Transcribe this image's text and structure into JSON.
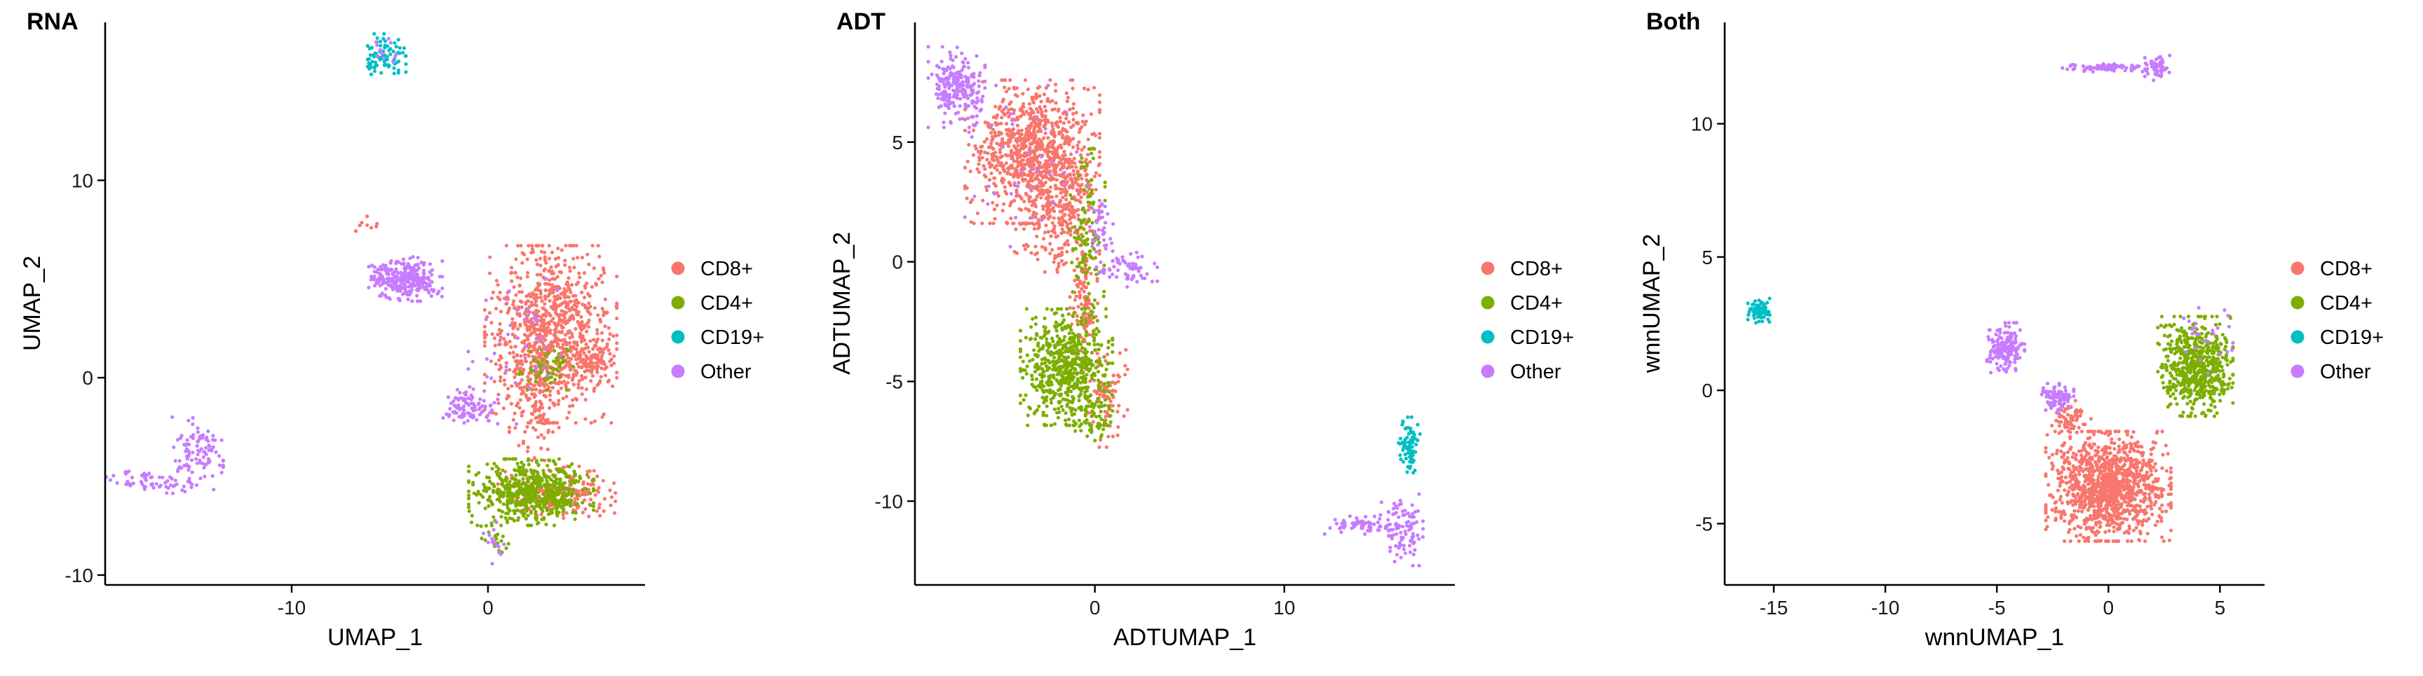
{
  "chart_data": [
    {
      "type": "scatter",
      "title": "RNA",
      "xlabel": "UMAP_1",
      "ylabel": "UMAP_2",
      "xlim": [
        -19.5,
        8
      ],
      "ylim": [
        -10.5,
        18
      ],
      "xticks": [
        -10,
        0
      ],
      "xtick_labels": [
        "-10",
        "0"
      ],
      "yticks": [
        -10,
        0,
        10
      ],
      "ytick_labels": [
        "-10",
        "0",
        "10"
      ],
      "grid": false,
      "legend_position": "right",
      "series": [
        {
          "name": "CD8+",
          "color": "#F8766D",
          "clusters": [
            {
              "cx": 3.2,
              "cy": 2.2,
              "sx": 1.8,
              "sy": 2.4,
              "n": 950
            },
            {
              "cx": 5.3,
              "cy": 0.7,
              "sx": 0.6,
              "sy": 0.5,
              "n": 70
            },
            {
              "cx": 3.5,
              "cy": -5.8,
              "sx": 1.6,
              "sy": 0.7,
              "n": 220
            },
            {
              "cx": 2.4,
              "cy": -1.2,
              "sx": 0.7,
              "sy": 1.6,
              "n": 90
            },
            {
              "cx": -6.2,
              "cy": 7.8,
              "sx": 0.3,
              "sy": 0.2,
              "n": 8
            }
          ]
        },
        {
          "name": "CD4+",
          "color": "#7CAE00",
          "clusters": [
            {
              "cx": 2.2,
              "cy": -5.8,
              "sx": 1.7,
              "sy": 0.9,
              "n": 560
            },
            {
              "cx": 3.1,
              "cy": 0.5,
              "sx": 0.8,
              "sy": 0.6,
              "n": 60
            },
            {
              "cx": 0.3,
              "cy": -8.0,
              "sx": 0.4,
              "sy": 0.6,
              "n": 25
            }
          ]
        },
        {
          "name": "CD19+",
          "color": "#00BFC4",
          "clusters": [
            {
              "cx": -5.3,
              "cy": 16.3,
              "sx": 0.6,
              "sy": 0.6,
              "n": 80
            }
          ]
        },
        {
          "name": "Other",
          "color": "#C77CFF",
          "clusters": [
            {
              "cx": -4.2,
              "cy": 5.0,
              "sx": 1.0,
              "sy": 0.6,
              "n": 300
            },
            {
              "cx": -1.0,
              "cy": -1.4,
              "sx": 0.8,
              "sy": 0.5,
              "n": 100
            },
            {
              "cx": -14.8,
              "cy": -3.8,
              "sx": 0.7,
              "sy": 1.0,
              "n": 100
            },
            {
              "cx": -17.2,
              "cy": -5.3,
              "sx": 1.2,
              "sy": 0.3,
              "n": 60
            },
            {
              "cx": -5.4,
              "cy": 16.5,
              "sx": 0.5,
              "sy": 0.4,
              "n": 12
            },
            {
              "cx": 1.8,
              "cy": 1.4,
              "sx": 1.5,
              "sy": 2.0,
              "n": 40
            },
            {
              "cx": 0.3,
              "cy": -8.3,
              "sx": 0.3,
              "sy": 0.6,
              "n": 15
            }
          ]
        }
      ]
    },
    {
      "type": "scatter",
      "title": "ADT",
      "xlabel": "ADTUMAP_1",
      "ylabel": "ADTUMAP_2",
      "xlim": [
        -9.5,
        19
      ],
      "ylim": [
        -13.5,
        10
      ],
      "xticks": [
        0,
        10
      ],
      "xtick_labels": [
        "0",
        "10"
      ],
      "yticks": [
        -10,
        -5,
        0,
        5
      ],
      "ytick_labels": [
        "-10",
        "-5",
        "0",
        "5"
      ],
      "grid": false,
      "legend_position": "right",
      "series": [
        {
          "name": "CD8+",
          "color": "#F8766D",
          "clusters": [
            {
              "cx": -3.3,
              "cy": 4.6,
              "sx": 1.9,
              "sy": 1.6,
              "n": 900
            },
            {
              "cx": -2.0,
              "cy": 2.0,
              "sx": 1.2,
              "sy": 1.3,
              "n": 250
            },
            {
              "cx": -0.6,
              "cy": -1.7,
              "sx": 0.4,
              "sy": 1.6,
              "n": 120
            },
            {
              "cx": 0.6,
              "cy": -5.5,
              "sx": 0.6,
              "sy": 1.2,
              "n": 90
            }
          ]
        },
        {
          "name": "CD4+",
          "color": "#7CAE00",
          "clusters": [
            {
              "cx": -1.5,
              "cy": -4.4,
              "sx": 1.3,
              "sy": 1.3,
              "n": 600
            },
            {
              "cx": -0.4,
              "cy": 0.6,
              "sx": 0.5,
              "sy": 2.2,
              "n": 120
            },
            {
              "cx": -0.1,
              "cy": -6.5,
              "sx": 0.5,
              "sy": 0.6,
              "n": 50
            }
          ]
        },
        {
          "name": "CD19+",
          "color": "#00BFC4",
          "clusters": [
            {
              "cx": 16.6,
              "cy": -7.8,
              "sx": 0.3,
              "sy": 0.7,
              "n": 80
            }
          ]
        },
        {
          "name": "Other",
          "color": "#C77CFF",
          "clusters": [
            {
              "cx": -7.3,
              "cy": 7.3,
              "sx": 0.8,
              "sy": 0.9,
              "n": 230
            },
            {
              "cx": 1.8,
              "cy": -0.3,
              "sx": 0.8,
              "sy": 0.4,
              "n": 60
            },
            {
              "cx": 0.4,
              "cy": 1.4,
              "sx": 0.4,
              "sy": 1.0,
              "n": 40
            },
            {
              "cx": 14.0,
              "cy": -11.0,
              "sx": 1.0,
              "sy": 0.2,
              "n": 60
            },
            {
              "cx": 16.2,
              "cy": -11.2,
              "sx": 0.6,
              "sy": 0.8,
              "n": 100
            },
            {
              "cx": -3.5,
              "cy": 4.0,
              "sx": 1.8,
              "sy": 1.8,
              "n": 40
            }
          ]
        }
      ]
    },
    {
      "type": "scatter",
      "title": "Both",
      "xlabel": "wnnUMAP_1",
      "ylabel": "wnnUMAP_2",
      "xlim": [
        -17.2,
        7
      ],
      "ylim": [
        -7.3,
        13.8
      ],
      "xticks": [
        -15,
        -10,
        -5,
        0,
        5
      ],
      "xtick_labels": [
        "-15",
        "-10",
        "-5",
        "0",
        "5"
      ],
      "yticks": [
        -5,
        0,
        5,
        10
      ],
      "ytick_labels": [
        "-5",
        "0",
        "5",
        "10"
      ],
      "grid": false,
      "legend_position": "right",
      "series": [
        {
          "name": "CD8+",
          "color": "#F8766D",
          "clusters": [
            {
              "cx": 0.0,
              "cy": -3.6,
              "sx": 1.5,
              "sy": 1.1,
              "n": 1200
            },
            {
              "cx": -1.6,
              "cy": -1.0,
              "sx": 0.5,
              "sy": 0.4,
              "n": 60
            }
          ]
        },
        {
          "name": "CD4+",
          "color": "#7CAE00",
          "clusters": [
            {
              "cx": 3.9,
              "cy": 0.9,
              "sx": 0.9,
              "sy": 1.0,
              "n": 620
            }
          ]
        },
        {
          "name": "CD19+",
          "color": "#00BFC4",
          "clusters": [
            {
              "cx": -15.6,
              "cy": 3.0,
              "sx": 0.3,
              "sy": 0.25,
              "n": 80
            }
          ]
        },
        {
          "name": "Other",
          "color": "#C77CFF",
          "clusters": [
            {
              "cx": -4.6,
              "cy": 1.6,
              "sx": 0.45,
              "sy": 0.5,
              "n": 170
            },
            {
              "cx": -2.3,
              "cy": -0.3,
              "sx": 0.4,
              "sy": 0.3,
              "n": 90
            },
            {
              "cx": 0.0,
              "cy": 12.1,
              "sx": 1.1,
              "sy": 0.08,
              "n": 80
            },
            {
              "cx": 2.2,
              "cy": 12.1,
              "sx": 0.3,
              "sy": 0.25,
              "n": 60
            },
            {
              "cx": 4.5,
              "cy": 2.0,
              "sx": 0.6,
              "sy": 0.8,
              "n": 25
            }
          ]
        }
      ]
    }
  ]
}
